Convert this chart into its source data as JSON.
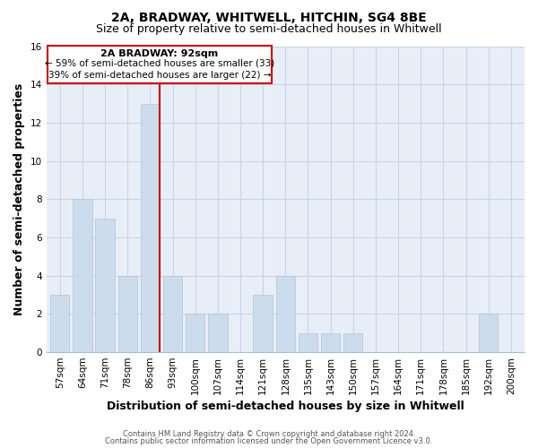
{
  "title": "2A, BRADWAY, WHITWELL, HITCHIN, SG4 8BE",
  "subtitle": "Size of property relative to semi-detached houses in Whitwell",
  "xlabel": "Distribution of semi-detached houses by size in Whitwell",
  "ylabel": "Number of semi-detached properties",
  "bar_labels": [
    "57sqm",
    "64sqm",
    "71sqm",
    "78sqm",
    "86sqm",
    "93sqm",
    "100sqm",
    "107sqm",
    "114sqm",
    "121sqm",
    "128sqm",
    "135sqm",
    "143sqm",
    "150sqm",
    "157sqm",
    "164sqm",
    "171sqm",
    "178sqm",
    "185sqm",
    "192sqm",
    "200sqm"
  ],
  "bar_values": [
    3,
    8,
    7,
    4,
    13,
    4,
    2,
    2,
    0,
    3,
    4,
    1,
    1,
    1,
    0,
    0,
    0,
    0,
    0,
    2,
    0
  ],
  "highlight_line_index": 4,
  "bar_color": "#ccdcec",
  "highlight_line_color": "#cc0000",
  "ylim": [
    0,
    16
  ],
  "yticks": [
    0,
    2,
    4,
    6,
    8,
    10,
    12,
    14,
    16
  ],
  "annotation_title": "2A BRADWAY: 92sqm",
  "annotation_line1": "← 59% of semi-detached houses are smaller (33)",
  "annotation_line2": "39% of semi-detached houses are larger (22) →",
  "footer_line1": "Contains HM Land Registry data © Crown copyright and database right 2024.",
  "footer_line2": "Contains public sector information licensed under the Open Government Licence v3.0.",
  "background_color": "#ffffff",
  "plot_bg_color": "#e8eef8",
  "grid_color": "#c8d4e4",
  "title_fontsize": 10,
  "subtitle_fontsize": 9,
  "axis_label_fontsize": 9,
  "tick_fontsize": 7.5,
  "footer_fontsize": 6
}
